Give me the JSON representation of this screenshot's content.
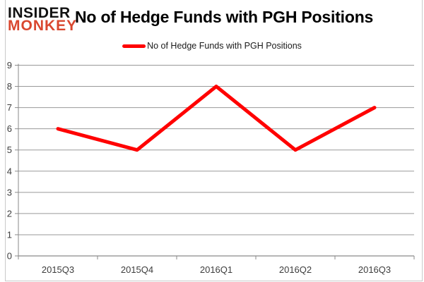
{
  "logo": {
    "line1": "INSIDER",
    "line2": "MONKEY"
  },
  "legend": {
    "label": "No of Hedge Funds with PGH Positions"
  },
  "chart_data": {
    "type": "line",
    "title": "No of Hedge Funds with PGH Positions",
    "categories": [
      "2015Q3",
      "2015Q4",
      "2016Q1",
      "2016Q2",
      "2016Q3"
    ],
    "series": [
      {
        "name": "No of Hedge Funds with PGH Positions",
        "values": [
          6,
          5,
          8,
          5,
          7
        ]
      }
    ],
    "ylim": [
      0,
      9
    ],
    "ytick_step": 1,
    "grid": "horizontal",
    "legend_position": "top-center",
    "colors": {
      "line": "#ff0000",
      "grid": "#999999",
      "axis": "#8a8a8a",
      "tick_label": "#3d3d3d",
      "title": "#000000",
      "logo_black": "#111111",
      "logo_red": "#d9472f",
      "frame": "#c9c9c9",
      "background": "#ffffff"
    }
  }
}
